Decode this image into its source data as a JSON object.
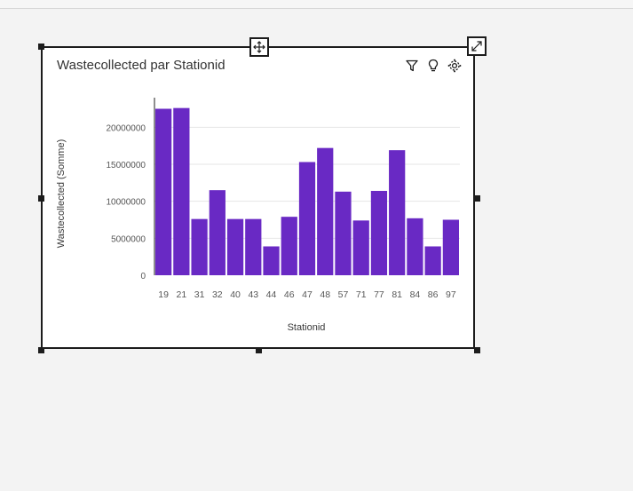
{
  "widget": {
    "title": "Wastecollected par Stationid",
    "toolbar": {
      "filter_icon": "filter-icon",
      "insight_icon": "lightbulb-icon",
      "settings_icon": "settings-icon"
    },
    "move_icon": "move-icon",
    "expand_icon": "expand-icon"
  },
  "colors": {
    "bar": "#6929c4",
    "gridline": "#e6e6e6",
    "axis": "#1c1c1c",
    "selection": "#1c1c1c"
  },
  "chart_data": {
    "type": "bar",
    "title": "Wastecollected par Stationid",
    "xlabel": "Stationid",
    "ylabel": "Wastecollected (Somme)",
    "categories": [
      "19",
      "21",
      "31",
      "32",
      "40",
      "43",
      "44",
      "46",
      "47",
      "48",
      "57",
      "71",
      "77",
      "81",
      "84",
      "86",
      "97"
    ],
    "values": [
      22500000,
      22600000,
      7600000,
      11500000,
      7600000,
      7600000,
      3900000,
      7900000,
      15300000,
      17200000,
      11300000,
      7400000,
      11400000,
      16900000,
      7700000,
      3900000,
      7500000
    ],
    "yticks": [
      0,
      5000000,
      10000000,
      15000000,
      20000000
    ],
    "ytick_labels": [
      "0",
      "5000000",
      "10000000",
      "15000000",
      "20000000"
    ],
    "ylim": [
      0,
      24000000
    ],
    "grid": true
  }
}
